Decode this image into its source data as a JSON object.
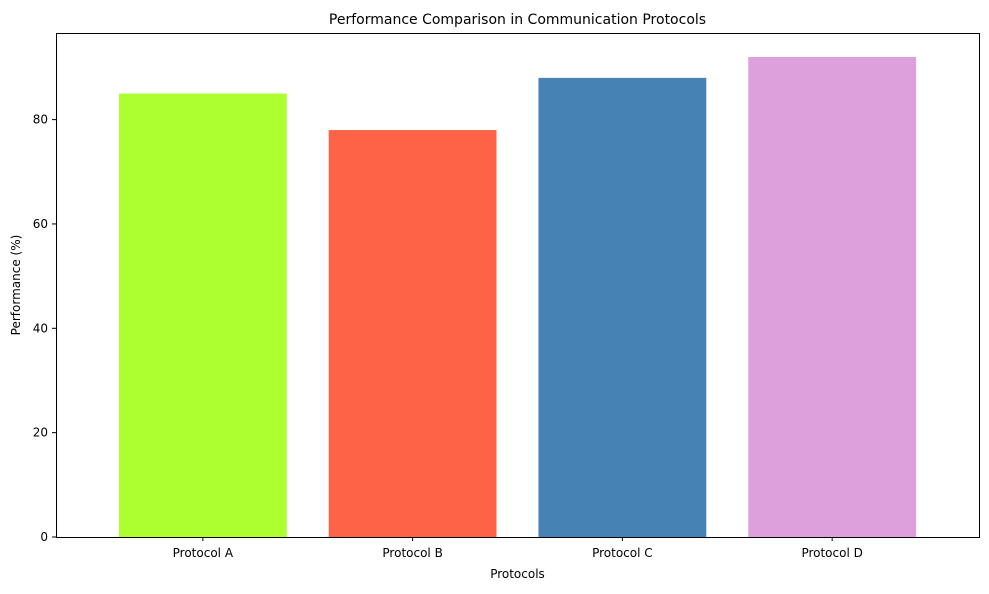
{
  "chart_data": {
    "type": "bar",
    "title": "Performance Comparison in Communication Protocols",
    "xlabel": "Protocols",
    "ylabel": "Performance (%)",
    "categories": [
      "Protocol A",
      "Protocol B",
      "Protocol C",
      "Protocol D"
    ],
    "values": [
      85,
      78,
      88,
      92
    ],
    "colors": [
      "#adff2f",
      "#ff6347",
      "#4682b4",
      "#dda0dd"
    ],
    "ylim": [
      0,
      96.6
    ],
    "yticks": [
      0,
      20,
      40,
      60,
      80
    ],
    "grid": false,
    "legend": "none"
  }
}
